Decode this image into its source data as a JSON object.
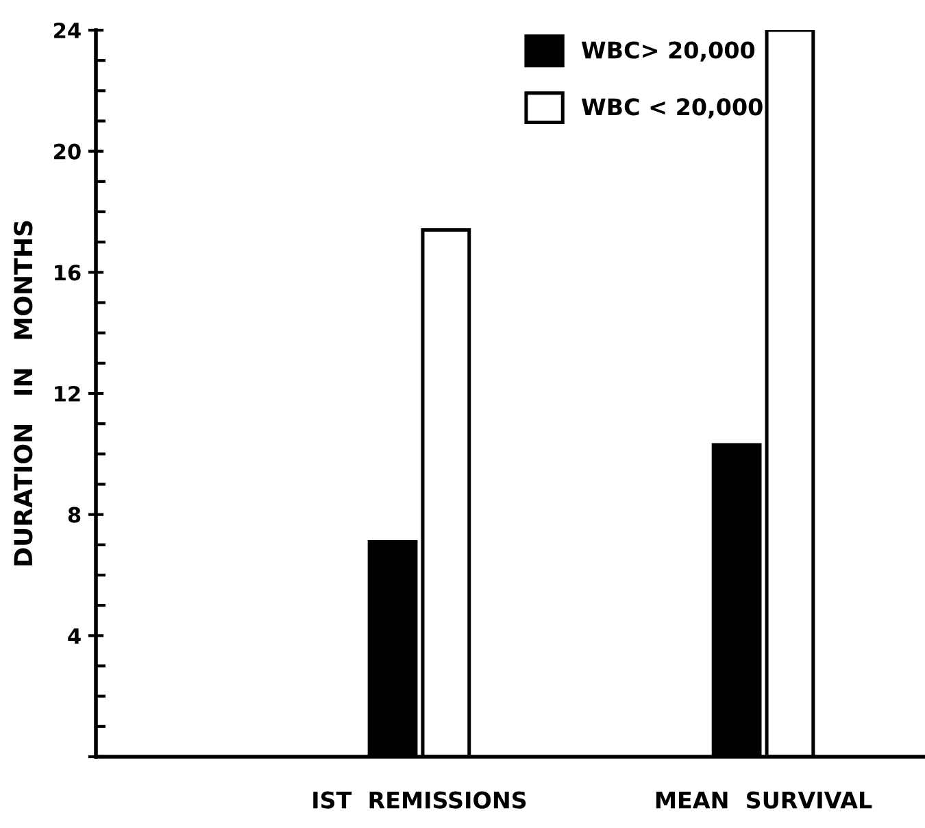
{
  "chart_data": {
    "type": "bar",
    "ylabel": "DURATION   IN   MONTHS",
    "categories": [
      "IST  REMISSIONS",
      "MEAN  SURVIVAL"
    ],
    "series": [
      {
        "name": "WBC> 20,000",
        "color": "#000000",
        "values": [
          7.1,
          10.3
        ]
      },
      {
        "name": "WBC < 20,000",
        "color": "#ffffff",
        "values": [
          17.4,
          24.0
        ]
      }
    ],
    "ylim": [
      0,
      24
    ],
    "yticks": [
      {
        "value": 0,
        "label": null
      },
      4,
      8,
      12,
      16,
      20,
      24
    ],
    "grid": false,
    "legend": "top right"
  }
}
